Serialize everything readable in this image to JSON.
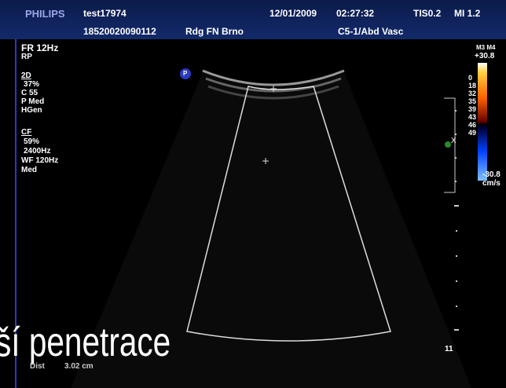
{
  "header": {
    "brand": "PHILIPS",
    "patient": "test17974",
    "date": "12/01/2009",
    "time": "02:27:32",
    "tis": "TIS0.2",
    "mi": "MI 1.2",
    "exam_id": "18520020090112",
    "institution": "Rdg FN Brno",
    "probe": "C5-1/Abd Vasc"
  },
  "left_panel": {
    "frame_rate": "FR 12Hz",
    "mode_rp": "RP",
    "section_2d": "2D",
    "gain_2d": "37%",
    "compression": "C 55",
    "persistence": "P Med",
    "harmonics": "HGen",
    "section_cf": "CF",
    "gain_cf": "59%",
    "frequency": "2400Hz",
    "wall_filter": "WF 120Hz",
    "cf_setting": "Med"
  },
  "color_scale": {
    "maps": "M3 M4",
    "max": "+30.8",
    "levels": [
      "0",
      "18",
      "32",
      "35",
      "39",
      "43",
      "46",
      "49"
    ],
    "min": "-30.8",
    "unit": "cm/s"
  },
  "image": {
    "badge": "P",
    "depth_marker": "11",
    "focus_mark": "X"
  },
  "overlay": {
    "caption": "ší penetrace",
    "measure_label": "Dist",
    "measure_value": "3.02 cm"
  }
}
